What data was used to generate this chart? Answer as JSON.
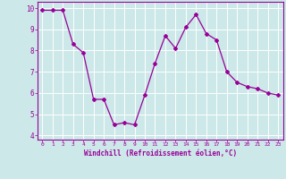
{
  "x": [
    0,
    1,
    2,
    3,
    4,
    5,
    6,
    7,
    8,
    9,
    10,
    11,
    12,
    13,
    14,
    15,
    16,
    17,
    18,
    19,
    20,
    21,
    22,
    23
  ],
  "y": [
    9.9,
    9.9,
    9.9,
    8.3,
    7.9,
    5.7,
    5.7,
    4.5,
    4.6,
    4.5,
    5.9,
    7.4,
    8.7,
    8.1,
    9.1,
    9.7,
    8.8,
    8.5,
    7.0,
    6.5,
    6.3,
    6.2,
    6.0,
    5.9
  ],
  "line_color": "#990099",
  "marker": "D",
  "marker_size": 2.0,
  "linewidth": 0.9,
  "xlim": [
    -0.5,
    23.5
  ],
  "ylim": [
    3.8,
    10.3
  ],
  "yticks": [
    4,
    5,
    6,
    7,
    8,
    9,
    10
  ],
  "xticks": [
    0,
    1,
    2,
    3,
    4,
    5,
    6,
    7,
    8,
    9,
    10,
    11,
    12,
    13,
    14,
    15,
    16,
    17,
    18,
    19,
    20,
    21,
    22,
    23
  ],
  "xlabel": "Windchill (Refroidissement éolien,°C)",
  "background_color": "#cce8e8",
  "grid_color": "#ffffff",
  "tick_color": "#990099",
  "label_color": "#990099",
  "spine_color": "#990099"
}
